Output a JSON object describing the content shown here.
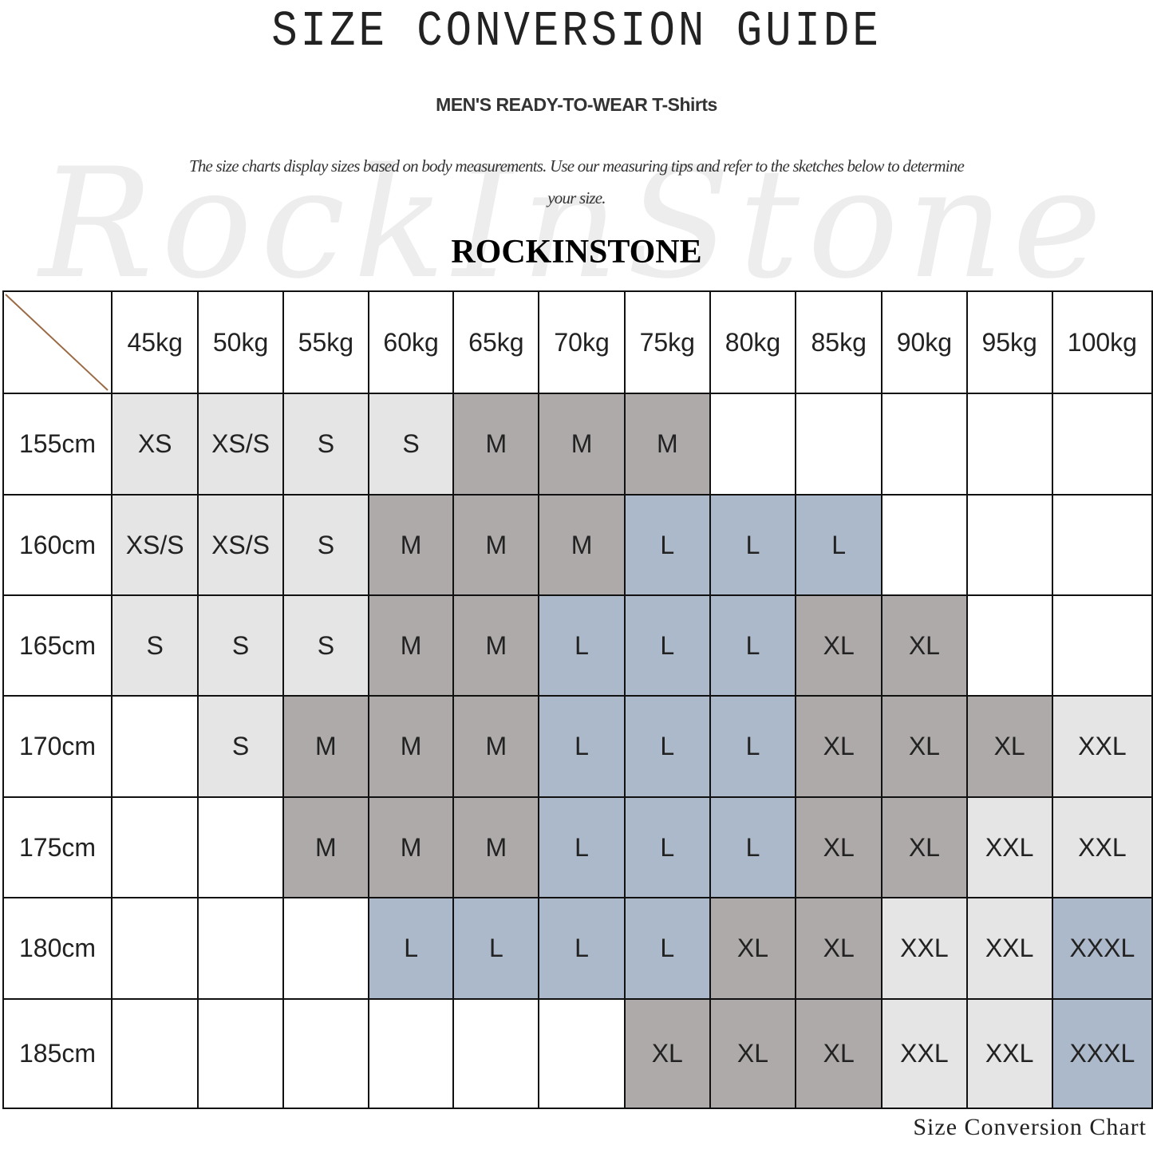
{
  "header": {
    "title": "SIZE CONVERSION GUIDE",
    "subtitle": "MEN'S READY-TO-WEAR T-Shirts",
    "description": "The size charts display sizes based on body measurements. Use our measuring tips and refer to the sketches below to determine your size.",
    "brand": "ROCKINSTONE",
    "watermark": "RockInStone"
  },
  "footer": {
    "caption": "Size Conversion Chart"
  },
  "colors": {
    "XS": "#e5e5e5",
    "XS/S": "#e5e5e5",
    "S": "#e5e5e5",
    "XXL": "#e5e5e5",
    "M": "#aeaaaa",
    "XL": "#aeaaaa",
    "L": "#acb9ca",
    "XXXL": "#acb9ca",
    "corner_line": "#9a6a45"
  },
  "chart_data": {
    "type": "table",
    "columns": [
      "45kg",
      "50kg",
      "55kg",
      "60kg",
      "65kg",
      "70kg",
      "75kg",
      "80kg",
      "85kg",
      "90kg",
      "95kg",
      "100kg"
    ],
    "rows": [
      {
        "label": "155cm",
        "cells": [
          "XS",
          "XS/S",
          "S",
          "S",
          "M",
          "M",
          "M",
          "",
          "",
          "",
          "",
          ""
        ]
      },
      {
        "label": "160cm",
        "cells": [
          "XS/S",
          "XS/S",
          "S",
          "M",
          "M",
          "M",
          "L",
          "L",
          "L",
          "",
          "",
          ""
        ]
      },
      {
        "label": "165cm",
        "cells": [
          "S",
          "S",
          "S",
          "M",
          "M",
          "L",
          "L",
          "L",
          "XL",
          "XL",
          "",
          ""
        ]
      },
      {
        "label": "170cm",
        "cells": [
          "",
          "S",
          "M",
          "M",
          "M",
          "L",
          "L",
          "L",
          "XL",
          "XL",
          "XL",
          "XXL"
        ]
      },
      {
        "label": "175cm",
        "cells": [
          "",
          "",
          "M",
          "M",
          "M",
          "L",
          "L",
          "L",
          "XL",
          "XL",
          "XXL",
          "XXL"
        ]
      },
      {
        "label": "180cm",
        "cells": [
          "",
          "",
          "",
          "L",
          "L",
          "L",
          "L",
          "XL",
          "XL",
          "XXL",
          "XXL",
          "XXXL"
        ]
      },
      {
        "label": "185cm",
        "cells": [
          "",
          "",
          "",
          "",
          "",
          "",
          "XL",
          "XL",
          "XL",
          "XXL",
          "XXL",
          "XXXL"
        ]
      }
    ]
  }
}
